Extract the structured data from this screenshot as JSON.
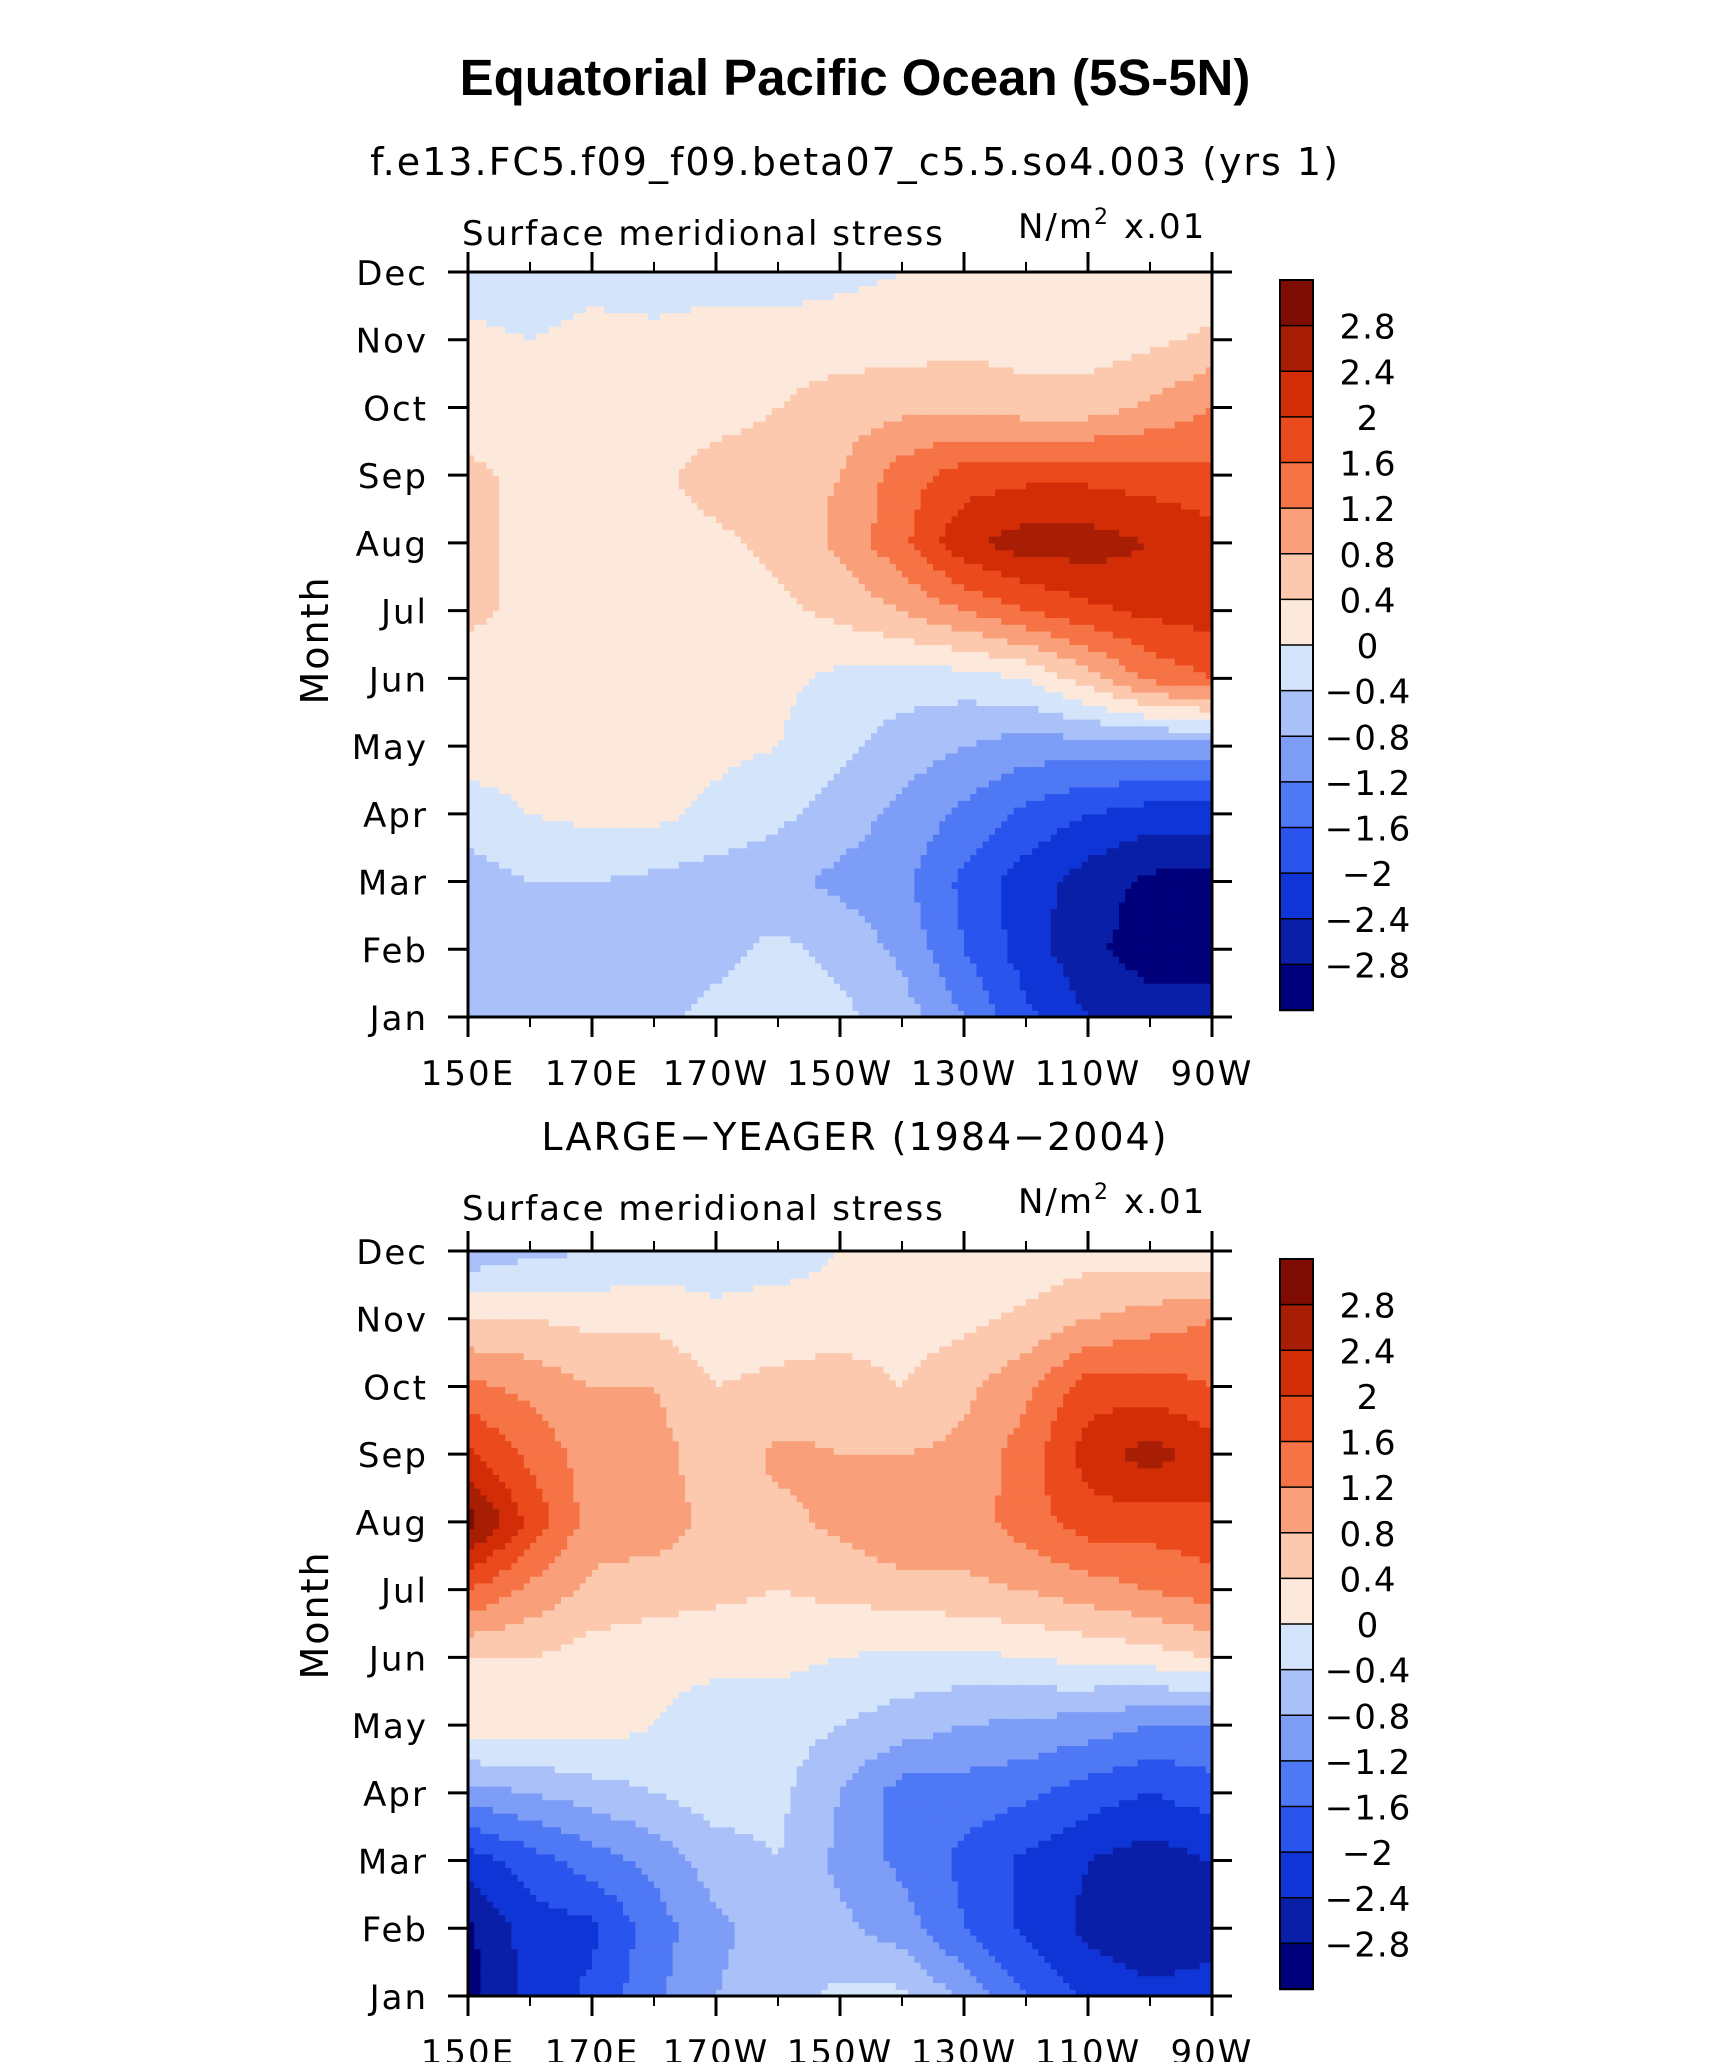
{
  "main_title": "Equatorial Pacific Ocean (5S-5N)",
  "colors": {
    "levels": [
      "#00007a",
      "#0a1fa8",
      "#0f35d6",
      "#2a54ee",
      "#4f78f5",
      "#7d9df7",
      "#a9c0f9",
      "#d3e4fb",
      "#fde9dc",
      "#fcc8ae",
      "#f9a07a",
      "#f67346",
      "#eb4a1c",
      "#d22d07",
      "#a81e05",
      "#7e0c02"
    ]
  },
  "chart_data": [
    {
      "type": "heatmap",
      "subtitle": "f.e13.FC5.f09_f09.beta07_c5.5.so4.003 (yrs 1)",
      "left_label": "Surface meridional stress",
      "units_base": "N/m",
      "units_sup": "2",
      "units_scale": "x.01",
      "ylabel": "Month",
      "x_ticks": [
        "150E",
        "170E",
        "170W",
        "150W",
        "130W",
        "110W",
        "90W"
      ],
      "y_ticks": [
        "Jan",
        "Feb",
        "Mar",
        "Apr",
        "May",
        "Jun",
        "Jul",
        "Aug",
        "Sep",
        "Oct",
        "Nov",
        "Dec"
      ],
      "colorbar_labels": [
        "2.8",
        "2.4",
        "2",
        "1.6",
        "1.2",
        "0.8",
        "0.4",
        "0",
        "−0.4",
        "−0.8",
        "−1.2",
        "−1.6",
        "−2",
        "−2.4",
        "−2.8"
      ],
      "level_bounds": [
        -2.8,
        2.8
      ],
      "longitudes": [
        150,
        160,
        170,
        180,
        190,
        200,
        210,
        220,
        230,
        240,
        250,
        260,
        270
      ],
      "months": [
        "Jan",
        "Feb",
        "Mar",
        "Apr",
        "May",
        "Jun",
        "Jul",
        "Aug",
        "Sep",
        "Oct",
        "Nov",
        "Dec"
      ],
      "values": [
        [
          -0.6,
          -0.6,
          -0.5,
          -0.5,
          -0.3,
          -0.2,
          -0.3,
          -0.6,
          -1.2,
          -1.9,
          -2.4,
          -2.6,
          -2.5
        ],
        [
          -0.7,
          -0.6,
          -0.7,
          -0.6,
          -0.5,
          -0.3,
          -0.5,
          -0.9,
          -1.6,
          -2.2,
          -2.7,
          -3.0,
          -3.1
        ],
        [
          -0.6,
          -0.4,
          -0.4,
          -0.5,
          -0.6,
          -0.7,
          -0.9,
          -1.1,
          -1.7,
          -2.2,
          -2.6,
          -2.9,
          -3.0
        ],
        [
          -0.2,
          0.0,
          0.1,
          0.1,
          -0.1,
          -0.3,
          -0.6,
          -0.9,
          -1.3,
          -1.7,
          -2.0,
          -2.2,
          -2.2
        ],
        [
          0.2,
          0.2,
          0.3,
          0.2,
          0.1,
          0.0,
          -0.3,
          -0.6,
          -0.8,
          -1.0,
          -1.0,
          -1.0,
          -1.0
        ],
        [
          0.2,
          0.1,
          0.1,
          0.1,
          0.2,
          0.1,
          -0.1,
          -0.2,
          -0.2,
          0.0,
          0.6,
          1.3,
          1.6
        ],
        [
          0.5,
          0.3,
          0.2,
          0.2,
          0.2,
          0.3,
          0.5,
          0.8,
          1.2,
          1.6,
          1.9,
          2.1,
          2.2
        ],
        [
          0.5,
          0.3,
          0.2,
          0.2,
          0.3,
          0.5,
          0.9,
          1.5,
          2.3,
          2.6,
          2.6,
          2.4,
          2.2
        ],
        [
          0.5,
          0.3,
          0.2,
          0.3,
          0.6,
          0.7,
          0.8,
          1.4,
          1.8,
          1.9,
          1.9,
          1.8,
          1.7
        ],
        [
          0.2,
          0.1,
          0.1,
          0.1,
          0.2,
          0.4,
          0.6,
          0.7,
          0.7,
          0.6,
          0.6,
          0.9,
          1.2
        ],
        [
          0.1,
          0.0,
          0.1,
          0.1,
          0.2,
          0.2,
          0.2,
          0.2,
          0.3,
          0.2,
          0.2,
          0.3,
          0.5
        ],
        [
          -0.2,
          -0.2,
          -0.1,
          -0.2,
          -0.2,
          -0.2,
          -0.1,
          0.0,
          0.1,
          0.1,
          0.0,
          0.0,
          0.1
        ]
      ]
    },
    {
      "type": "heatmap",
      "subtitle": "LARGE−YEAGER (1984−2004)",
      "left_label": "Surface meridional stress",
      "units_base": "N/m",
      "units_sup": "2",
      "units_scale": "x.01",
      "ylabel": "Month",
      "x_ticks": [
        "150E",
        "170E",
        "170W",
        "150W",
        "130W",
        "110W",
        "90W"
      ],
      "y_ticks": [
        "Jan",
        "Feb",
        "Mar",
        "Apr",
        "May",
        "Jun",
        "Jul",
        "Aug",
        "Sep",
        "Oct",
        "Nov",
        "Dec"
      ],
      "colorbar_labels": [
        "2.8",
        "2.4",
        "2",
        "1.6",
        "1.2",
        "0.8",
        "0.4",
        "0",
        "−0.4",
        "−0.8",
        "−1.2",
        "−1.6",
        "−2",
        "−2.4",
        "−2.8"
      ],
      "level_bounds": [
        -2.8,
        2.8
      ],
      "longitudes": [
        150,
        160,
        170,
        180,
        190,
        200,
        210,
        220,
        230,
        240,
        250,
        260,
        270
      ],
      "months": [
        "Jan",
        "Feb",
        "Mar",
        "Apr",
        "May",
        "Jun",
        "Jul",
        "Aug",
        "Sep",
        "Oct",
        "Nov",
        "Dec"
      ],
      "values": [
        [
          -2.9,
          -2.3,
          -1.9,
          -1.3,
          -0.8,
          -0.6,
          -0.3,
          -0.3,
          -0.9,
          -1.6,
          -2.1,
          -2.3,
          -2.2
        ],
        [
          -2.9,
          -2.2,
          -2.1,
          -1.4,
          -0.9,
          -0.6,
          -0.7,
          -1.0,
          -1.6,
          -2.1,
          -2.5,
          -2.7,
          -2.6
        ],
        [
          -2.2,
          -1.8,
          -1.4,
          -1.1,
          -0.6,
          -0.4,
          -0.9,
          -1.3,
          -1.7,
          -2.1,
          -2.4,
          -2.6,
          -2.4
        ],
        [
          -1.0,
          -0.8,
          -0.6,
          -0.4,
          -0.2,
          -0.3,
          -0.8,
          -1.4,
          -1.4,
          -1.5,
          -1.8,
          -2.0,
          -1.8
        ],
        [
          0.3,
          0.2,
          0.2,
          0.0,
          -0.2,
          -0.2,
          -0.4,
          -0.6,
          -0.8,
          -0.9,
          -1.0,
          -1.2,
          -1.2
        ],
        [
          0.4,
          0.4,
          0.2,
          0.1,
          0.1,
          0.1,
          0.0,
          -0.1,
          -0.1,
          0.0,
          0.1,
          0.2,
          0.4
        ],
        [
          1.6,
          1.1,
          0.7,
          0.6,
          0.5,
          0.4,
          0.5,
          0.6,
          0.7,
          0.8,
          1.0,
          1.2,
          1.4
        ],
        [
          3.0,
          1.9,
          1.0,
          1.0,
          0.7,
          0.7,
          0.9,
          1.2,
          1.0,
          1.4,
          1.8,
          1.8,
          1.9
        ],
        [
          2.1,
          1.5,
          1.0,
          1.0,
          0.5,
          0.9,
          0.8,
          0.8,
          0.9,
          1.4,
          2.2,
          2.6,
          2.2
        ],
        [
          1.3,
          1.1,
          0.8,
          0.8,
          0.4,
          0.5,
          0.6,
          0.4,
          0.7,
          1.1,
          1.8,
          1.8,
          1.6
        ],
        [
          0.4,
          0.4,
          0.3,
          0.3,
          0.1,
          0.2,
          0.2,
          0.2,
          0.3,
          0.5,
          0.8,
          1.0,
          1.2
        ],
        [
          -0.7,
          -0.5,
          -0.4,
          -0.3,
          -0.2,
          -0.2,
          0.0,
          0.2,
          0.1,
          0.1,
          0.2,
          0.1,
          0.0
        ]
      ]
    }
  ]
}
